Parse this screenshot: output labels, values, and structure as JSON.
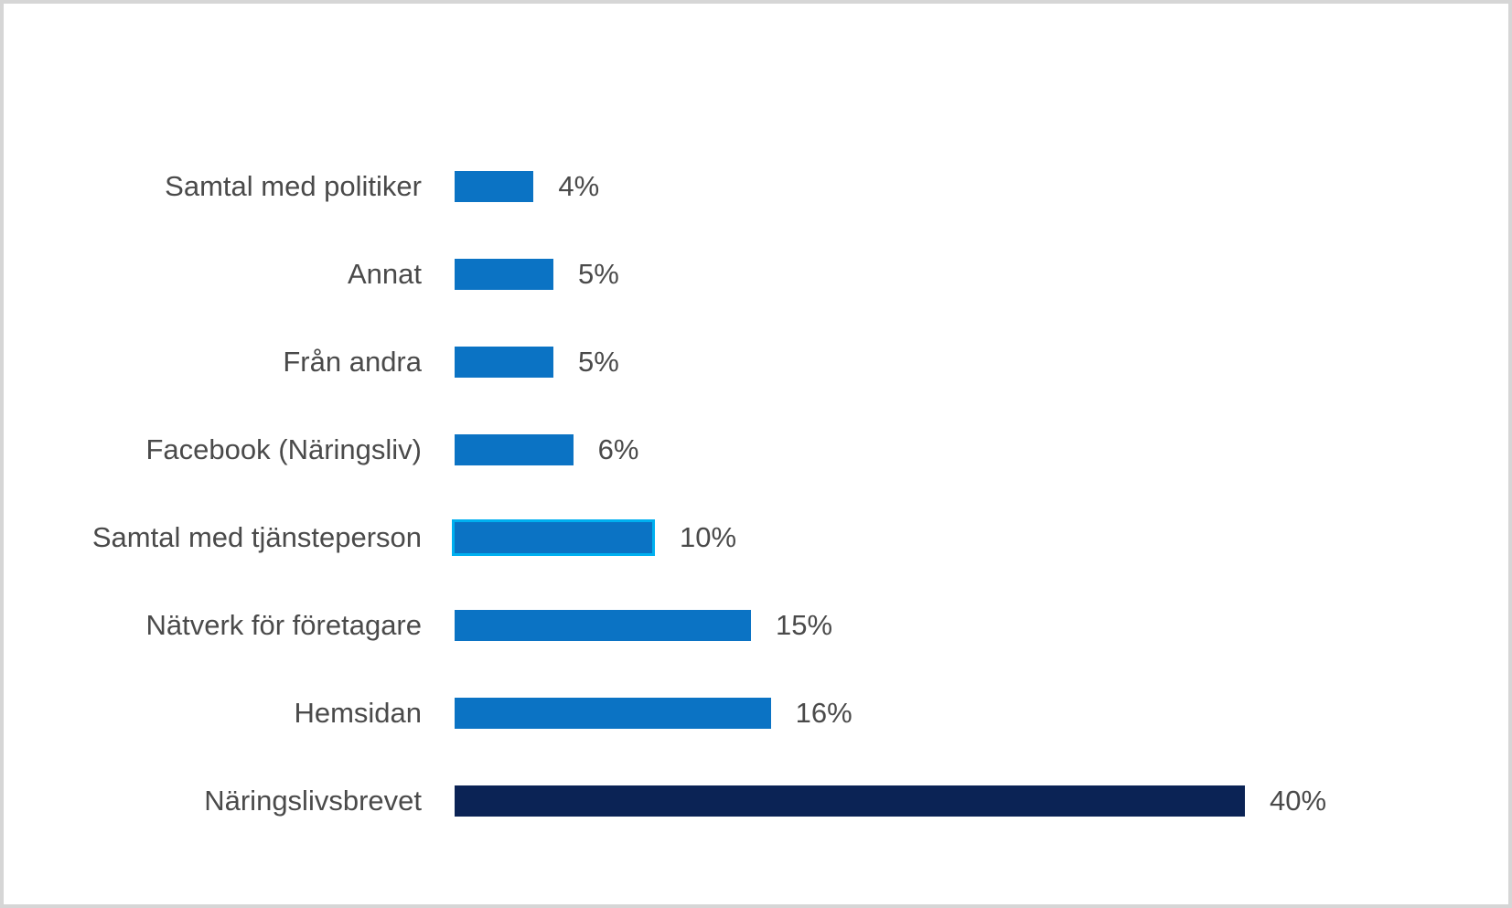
{
  "colors": {
    "bar_default": "#0b73c4",
    "bar_emphasis": "#0b2355",
    "selection_outline": "#00b0f0",
    "text": "#4a4a4a",
    "frame_border": "#d6d6d6",
    "background": "#ffffff"
  },
  "chart_data": {
    "type": "bar",
    "orientation": "horizontal",
    "title": "",
    "xlabel": "",
    "ylabel": "",
    "xlim": [
      0,
      45
    ],
    "grid": false,
    "legend": false,
    "axes_visible": false,
    "categories": [
      "Samtal med politiker",
      "Annat",
      "Från andra",
      "Facebook (Näringsliv)",
      "Samtal med tjänsteperson",
      "Nätverk för företagare",
      "Hemsidan",
      "Näringslivsbrevet"
    ],
    "values": [
      4,
      5,
      5,
      6,
      10,
      15,
      16,
      40
    ],
    "rows": [
      {
        "label": "Samtal med politiker",
        "value": 4,
        "value_label": "4%",
        "color_key": "bar_default",
        "selected": false
      },
      {
        "label": "Annat",
        "value": 5,
        "value_label": "5%",
        "color_key": "bar_default",
        "selected": false
      },
      {
        "label": "Från andra",
        "value": 5,
        "value_label": "5%",
        "color_key": "bar_default",
        "selected": false
      },
      {
        "label": "Facebook (Näringsliv)",
        "value": 6,
        "value_label": "6%",
        "color_key": "bar_default",
        "selected": false
      },
      {
        "label": "Samtal med tjänsteperson",
        "value": 10,
        "value_label": "10%",
        "color_key": "bar_default",
        "selected": true
      },
      {
        "label": "Nätverk för företagare",
        "value": 15,
        "value_label": "15%",
        "color_key": "bar_default",
        "selected": false
      },
      {
        "label": "Hemsidan",
        "value": 16,
        "value_label": "16%",
        "color_key": "bar_default",
        "selected": false
      },
      {
        "label": "Näringslivsbrevet",
        "value": 40,
        "value_label": "40%",
        "color_key": "bar_emphasis",
        "selected": false
      }
    ]
  }
}
